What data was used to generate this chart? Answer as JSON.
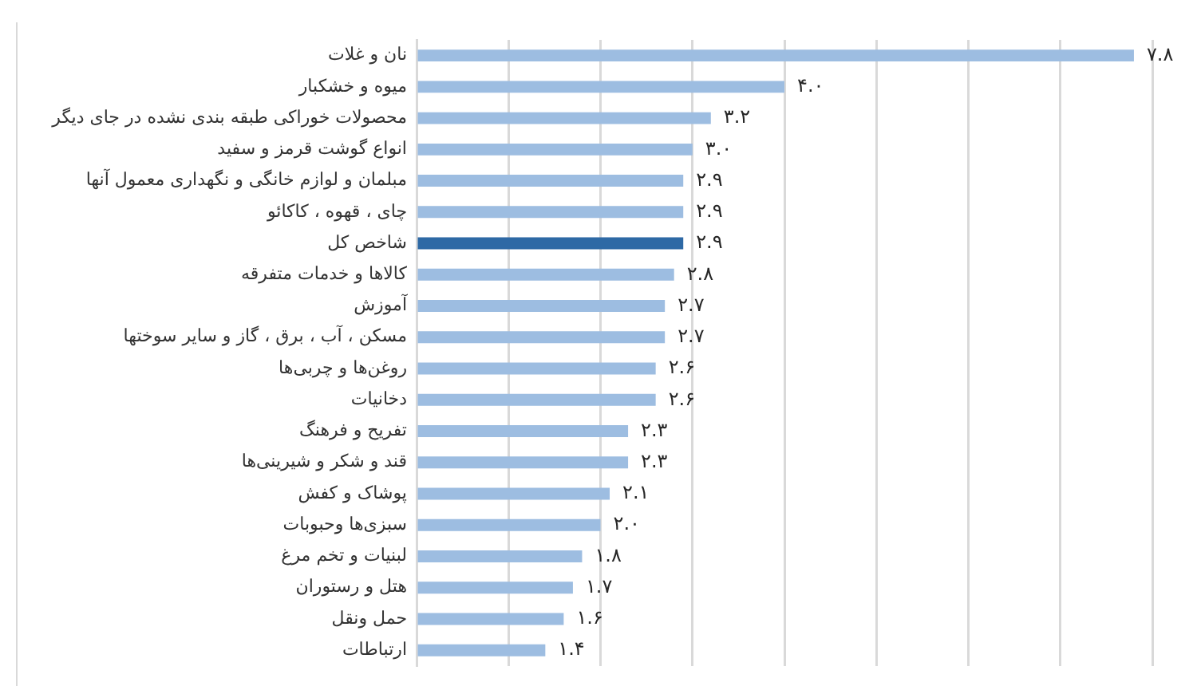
{
  "chart_data": {
    "type": "bar",
    "orientation": "horizontal",
    "categories": [
      "نان و غلات",
      "میوه و خشکبار",
      "محصولات خوراکی طبقه بندی نشده در جای دیگر",
      "انواع گوشت قرمز و سفید",
      "مبلمان و لوازم خانگی و نگهداری معمول آنها",
      "چای ، قهوه ، کاکائو",
      "شاخص کل",
      "کالاها و خدمات متفرقه",
      "آموزش",
      "مسکن ، آب ، برق ، گاز و سایر سوختها",
      "روغن‌ها و چربی‌ها",
      "دخانیات",
      "تفریح و فرهنگ",
      "قند و شکر و شیرینی‌ها",
      "پوشاک و کفش",
      "سبزی‌ها وحبوبات",
      "لبنیات و تخم مرغ",
      "هتل و رستوران",
      "حمل ونقل",
      "ارتباطات"
    ],
    "values": [
      7.8,
      4.0,
      3.2,
      3.0,
      2.9,
      2.9,
      2.9,
      2.8,
      2.7,
      2.7,
      2.6,
      2.6,
      2.3,
      2.3,
      2.1,
      2.0,
      1.8,
      1.7,
      1.6,
      1.4
    ],
    "colors": [
      "#9dbde1",
      "#9dbde1",
      "#9dbde1",
      "#9dbde1",
      "#9dbde1",
      "#9dbde1",
      "#2e69a5",
      "#9dbde1",
      "#9dbde1",
      "#9dbde1",
      "#9dbde1",
      "#9dbde1",
      "#9dbde1",
      "#9dbde1",
      "#9dbde1",
      "#9dbde1",
      "#9dbde1",
      "#9dbde1",
      "#9dbde1",
      "#9dbde1"
    ],
    "value_labels": [
      "۷.۸",
      "۴.۰",
      "۳.۲",
      "۳.۰",
      "۲.۹",
      "۲.۹",
      "۲.۹",
      "۲.۸",
      "۲.۷",
      "۲.۷",
      "۲.۶",
      "۲.۶",
      "۲.۳",
      "۲.۳",
      "۲.۱",
      "۲.۰",
      "۱.۸",
      "۱.۷",
      "۱.۶",
      "۱.۴"
    ],
    "xlim": [
      0,
      8
    ],
    "xticks": [
      {
        "value": 0,
        "label": null
      },
      {
        "value": 1,
        "label": null
      },
      {
        "value": 2,
        "label": null
      },
      {
        "value": 3,
        "label": null
      },
      {
        "value": 4,
        "label": null
      },
      {
        "value": 5,
        "label": null
      },
      {
        "value": 6,
        "label": null
      },
      {
        "value": 7,
        "label": null
      },
      {
        "value": 8,
        "label": null
      }
    ],
    "grid": "x",
    "tick_labels": "y"
  }
}
